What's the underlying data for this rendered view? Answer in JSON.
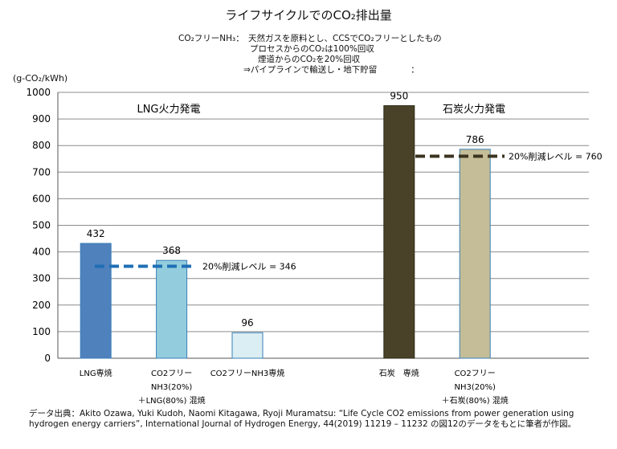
{
  "title": "ライフサイクルでのCO₂排出量",
  "notes": [
    "CO₂フリーNH₃：　天然ガスを原料とし、CCSでCO₂フリーとしたもの",
    "プロセスからのCO₂は100%回収",
    "煙道からのCO₂を20%回収",
    "⇒パイプラインで輸送し・地下貯留　　　　："
  ],
  "source": "データ出典：Akito Ozawa, Yuki Kudoh, Naomi Kitagawa, Ryoji Muramatsu: “Life Cycle CO2 emissions from power generation using hydrogen energy carriers”, International Journal of Hydrogen Energy,  44(2019) 11219 – 11232 の図12のデータをもとに筆者が作図。",
  "chart_data": {
    "type": "bar",
    "ylabel": "(g-CO₂/kWh)",
    "ylim": [
      0,
      1000
    ],
    "yticks": [
      0,
      100,
      200,
      300,
      400,
      500,
      600,
      700,
      800,
      900,
      1000
    ],
    "grid": true,
    "groups": [
      "LNG火力発電",
      "石炭火力発電"
    ],
    "bars": [
      {
        "category": [
          "LNG専焼"
        ],
        "value": 432,
        "label": "432",
        "color": "#4f81bd"
      },
      {
        "category": [
          "CO2フリー",
          "NH3(20%)",
          "＋LNG(80%)  混焼"
        ],
        "value": 368,
        "label": "368",
        "color": "#93cddd"
      },
      {
        "category": [
          "CO2フリーNH3専焼"
        ],
        "value": 96,
        "label": "96",
        "color": "#daeef3"
      },
      {
        "category": [
          "石炭　専焼"
        ],
        "value": 950,
        "label": "950",
        "color": "#4a4228"
      },
      {
        "category": [
          "CO2フリー",
          "NH3(20%)",
          "＋石炭(80%)  混焼"
        ],
        "value": 786,
        "label": "786",
        "color": "#c4bd97"
      }
    ],
    "reference_lines": [
      {
        "value": 346,
        "label": "20%削減レベル  = 346",
        "color": "#1f6fb5"
      },
      {
        "value": 760,
        "label": "20%削減レベル  = 760",
        "color": "#3b3420"
      }
    ]
  }
}
